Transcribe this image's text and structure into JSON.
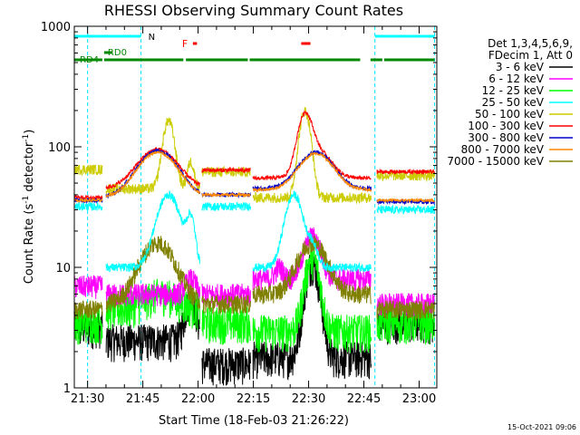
{
  "chart_data": {
    "type": "line",
    "title": "RHESSI Observing Summary Count Rates",
    "xlabel": "Start Time (18-Feb-03 21:26:22)",
    "ylabel_main": "Count Rate (s",
    "ylabel_sup1": "-1",
    "ylabel_mid": " detector",
    "ylabel_sup2": "-1",
    "ylabel_end": ")",
    "yscale": "log",
    "ylim": [
      1,
      1000
    ],
    "xlim_minutes": [
      1286.4,
      1384.8
    ],
    "x_ticks": [
      {
        "m": 1290,
        "label": "21:30"
      },
      {
        "m": 1305,
        "label": "21:45"
      },
      {
        "m": 1320,
        "label": "22:00"
      },
      {
        "m": 1335,
        "label": "22:15"
      },
      {
        "m": 1350,
        "label": "22:30"
      },
      {
        "m": 1365,
        "label": "22:45"
      },
      {
        "m": 1380,
        "label": "23:00"
      }
    ],
    "y_ticks": [
      {
        "v": 1,
        "label": "1"
      },
      {
        "v": 10,
        "label": "10"
      },
      {
        "v": 100,
        "label": "100"
      },
      {
        "v": 1000,
        "label": "1000"
      }
    ],
    "legend_header": [
      "Det 1,3,4,5,6,9,",
      "FDecim 1, Att 0"
    ],
    "legend_placement": "right",
    "series": [
      {
        "name": "3 - 6 keV",
        "color": "#000000"
      },
      {
        "name": "6 - 12 keV",
        "color": "#ff00ff"
      },
      {
        "name": "12 - 25 keV",
        "color": "#00ff00"
      },
      {
        "name": "25 - 50 keV",
        "color": "#00ffff"
      },
      {
        "name": "50 - 100 keV",
        "color": "#cccc00"
      },
      {
        "name": "100 - 300 keV",
        "color": "#ff0000"
      },
      {
        "name": "300 - 800 keV",
        "color": "#0000cc"
      },
      {
        "name": "800 - 7000 keV",
        "color": "#ff8800"
      },
      {
        "name": "7000 - 15000 keV",
        "color": "#808000"
      }
    ],
    "annotations": {
      "night_label": "N",
      "flare_label": "F",
      "rd0_label": "RD0",
      "rd4_label": "RD4"
    },
    "night_intervals": [
      [
        1286.4,
        1304.5
      ],
      [
        1368.0,
        1384.2
      ]
    ],
    "saa_lines": [
      1290.0,
      1304.5,
      1368.0,
      1384.2
    ],
    "flare_intervals": [
      [
        1318.6,
        1319.7
      ],
      [
        1348.0,
        1350.5
      ]
    ],
    "rd0_intervals": [
      [
        1294.5,
        1296.8
      ]
    ],
    "rd4_intervals": [
      [
        1286.4,
        1294.0
      ],
      [
        1294.5,
        1316.0
      ],
      [
        1316.7,
        1333.5
      ],
      [
        1334.0,
        1364.0
      ],
      [
        1366.8,
        1370.0
      ],
      [
        1370.5,
        1384.2
      ]
    ]
  },
  "footer": {
    "timestamp": "15-Oct-2021 09:06"
  }
}
